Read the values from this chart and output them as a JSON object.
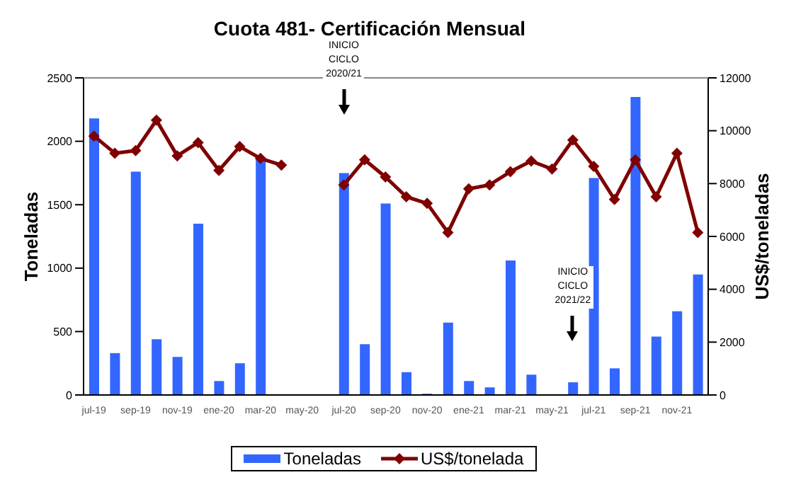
{
  "chart_data": {
    "type": "bar",
    "title": "Cuota 481-  Certificación Mensual",
    "ylabel": "Toneladas",
    "y2label": "US$/toneladas",
    "categories": [
      "jul-19",
      null,
      "sep-19",
      null,
      "nov-19",
      null,
      "ene-20",
      null,
      "mar-20",
      null,
      "may-20",
      null,
      "jul-20",
      null,
      "sep-20",
      null,
      "nov-20",
      null,
      "ene-21",
      null,
      "mar-21",
      null,
      "may-21",
      null,
      "jul-21",
      null,
      "sep-21",
      null,
      "nov-21",
      null
    ],
    "series": [
      {
        "name": "Toneladas",
        "color": "#3366ff",
        "values": [
          2180,
          330,
          1760,
          440,
          300,
          1350,
          110,
          250,
          1870,
          0,
          0,
          0,
          1750,
          400,
          1510,
          180,
          10,
          570,
          110,
          60,
          1060,
          160,
          0,
          100,
          1710,
          210,
          2350,
          460,
          660,
          950
        ]
      },
      {
        "name": "US$/tonelada",
        "type": "line",
        "axis": "y2",
        "color": "#7f0000",
        "marker": "diamond",
        "values": [
          9800,
          9150,
          9250,
          10400,
          9050,
          9550,
          8500,
          9400,
          8950,
          8700,
          null,
          null,
          7950,
          8900,
          8250,
          7500,
          7250,
          6150,
          7800,
          7950,
          8450,
          8850,
          8550,
          9650,
          8650,
          7400,
          8900,
          7500,
          9150,
          6150
        ]
      }
    ],
    "ylim": [
      0,
      2500
    ],
    "yticks": [
      0,
      500,
      1000,
      1500,
      2000,
      2500
    ],
    "y2lim": [
      0,
      12000
    ],
    "y2ticks": [
      0,
      2000,
      4000,
      6000,
      8000,
      10000,
      12000
    ],
    "grid": false,
    "legend": "bottom",
    "annotations": [
      "INICIO CICLO 2020/21",
      "INICIO CICLO 2021/22"
    ]
  }
}
